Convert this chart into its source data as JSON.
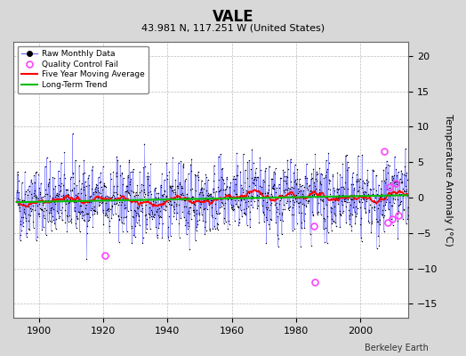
{
  "title": "VALE",
  "subtitle": "43.981 N, 117.251 W (United States)",
  "ylabel": "Temperature Anomaly (°C)",
  "credit": "Berkeley Earth",
  "year_start": 1893,
  "year_end": 2014,
  "ylim": [
    -17,
    22
  ],
  "yticks": [
    -15,
    -10,
    -5,
    0,
    5,
    10,
    15,
    20
  ],
  "xticks": [
    1900,
    1920,
    1940,
    1960,
    1980,
    2000
  ],
  "bg_color": "#d8d8d8",
  "plot_bg_color": "#ffffff",
  "raw_line_color": "#7777ff",
  "raw_marker_color": "#000000",
  "moving_avg_color": "#ff0000",
  "trend_color": "#00bb00",
  "qc_fail_color": "#ff44ff",
  "seed": 42,
  "noise_std": 2.5,
  "trend_slope": 0.004,
  "trend_intercept": -0.3,
  "qc_fail_years": [
    1920.5,
    1985.5,
    1986.0,
    2007.5,
    2008.5,
    2009.0,
    2010.0,
    2011.0,
    2012.0
  ],
  "qc_fail_values": [
    -8.2,
    -4.0,
    -12.0,
    6.5,
    -3.5,
    1.5,
    -3.0,
    2.0,
    -2.5
  ]
}
